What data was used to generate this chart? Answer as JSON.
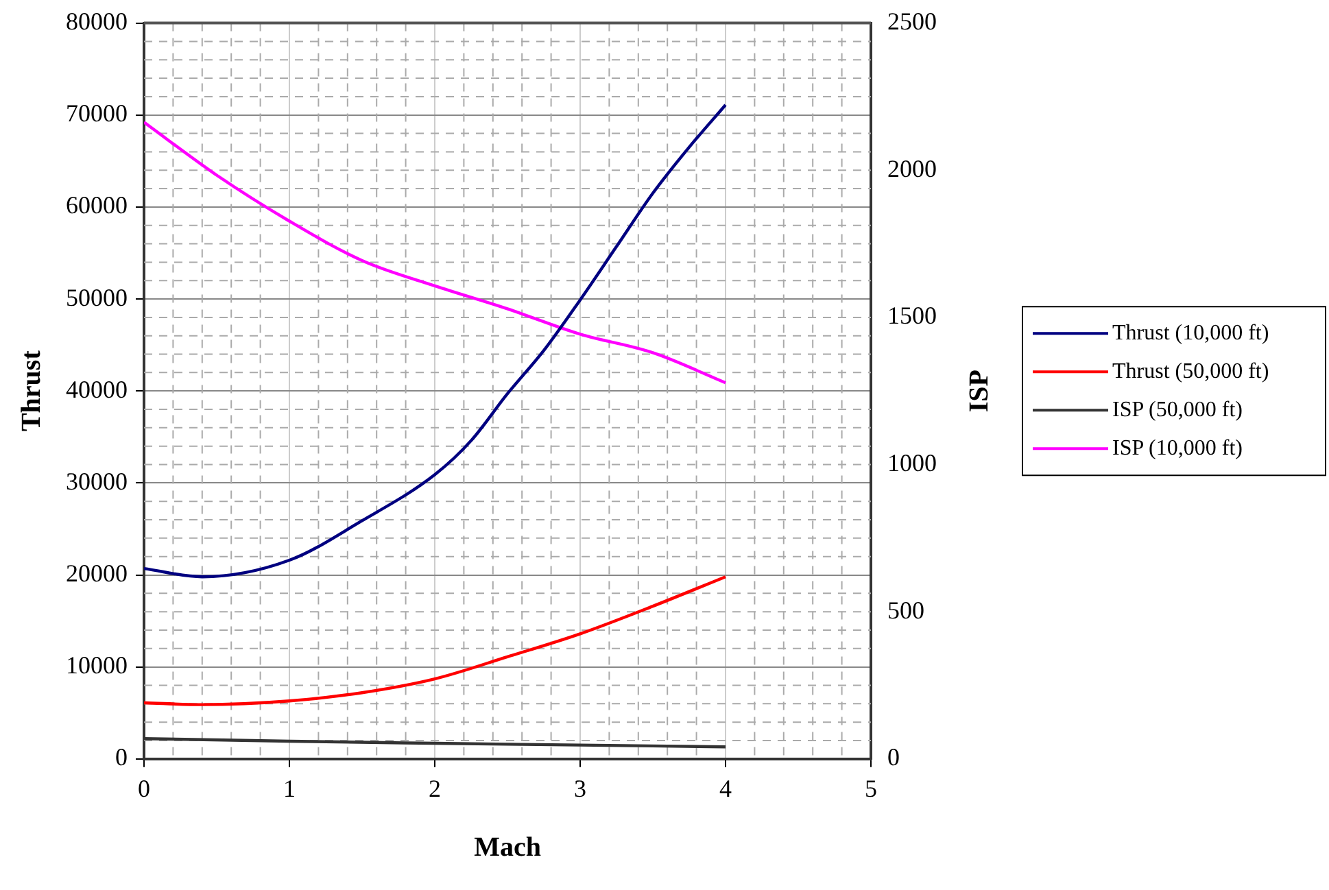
{
  "chart_data": {
    "type": "line",
    "xlabel": "Mach",
    "ylabel": "Thrust",
    "y2label": "ISP",
    "xlim": [
      0,
      5
    ],
    "xticks": [
      0,
      1,
      2,
      3,
      4,
      5
    ],
    "ylim": [
      0,
      80000
    ],
    "yticks": [
      0,
      10000,
      20000,
      30000,
      40000,
      50000,
      60000,
      70000,
      80000
    ],
    "y2lim": [
      0,
      2500
    ],
    "y2ticks": [
      0,
      500,
      1000,
      1500,
      2000,
      2500
    ],
    "grid": true,
    "legend": "right",
    "marker": "none",
    "line_style": "solid",
    "series": [
      {
        "name": "Thrust (10,000 ft)",
        "color": "#000080",
        "x": [
          0,
          0.4,
          1,
          1.5,
          2,
          2.25,
          2.5,
          2.75,
          3,
          3.25,
          3.5,
          3.75,
          4
        ],
        "values": [
          20700,
          19800,
          21600,
          25900,
          30900,
          34600,
          39700,
          44400,
          49900,
          55700,
          61500,
          66500,
          71100
        ]
      },
      {
        "name": "Thrust (50,000 ft)",
        "color": "#ff0000",
        "x": [
          0,
          0.4,
          1,
          1.5,
          2,
          2.5,
          3,
          3.5,
          4
        ],
        "values": [
          6100,
          5900,
          6300,
          7200,
          8700,
          11100,
          13600,
          16600,
          19800
        ]
      },
      {
        "name": "ISP (50,000 ft)",
        "color": "#333333",
        "axis": "y2",
        "x": [
          0,
          1,
          2,
          3,
          4
        ],
        "values": [
          69,
          60,
          53,
          47,
          41
        ]
      },
      {
        "name": "ISP (10,000 ft)",
        "color": "#ff00ff",
        "axis": "y2",
        "x": [
          0,
          0.5,
          1,
          1.5,
          2,
          2.5,
          3,
          3.5,
          4
        ],
        "values": [
          2163,
          1983,
          1827,
          1693,
          1607,
          1529,
          1443,
          1380,
          1278
        ]
      }
    ]
  }
}
